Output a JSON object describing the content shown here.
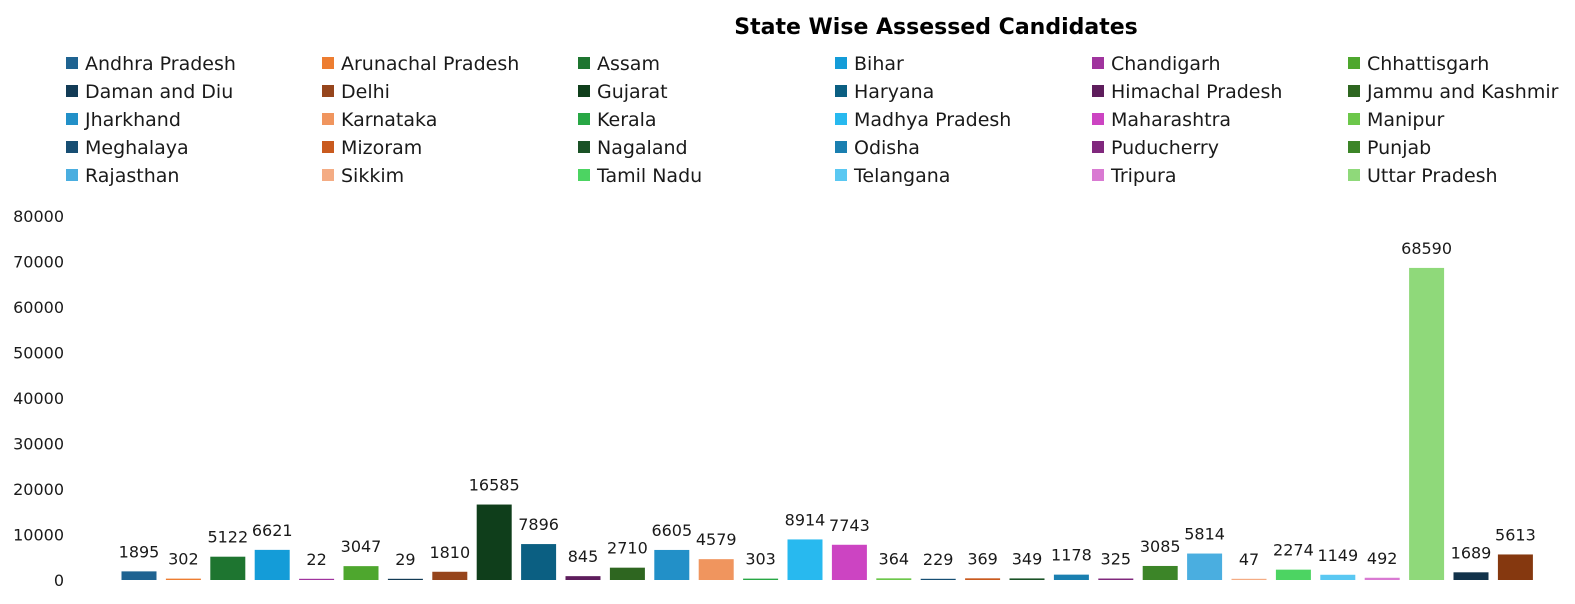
{
  "chart_data": {
    "type": "bar",
    "title": "State Wise Assessed Candidates",
    "xlabel": "",
    "ylabel": "",
    "ylim": [
      0,
      80000
    ],
    "yticks": [
      0,
      10000,
      20000,
      30000,
      40000,
      50000,
      60000,
      70000,
      80000
    ],
    "grid": false,
    "legend_position": "top",
    "legend": [
      {
        "name": "Andhra Pradesh",
        "color": "#1F6391"
      },
      {
        "name": "Arunachal Pradesh",
        "color": "#ED7D31"
      },
      {
        "name": "Assam",
        "color": "#1E7530"
      },
      {
        "name": "Bihar",
        "color": "#149CD8"
      },
      {
        "name": "Chandigarh",
        "color": "#A0349E"
      },
      {
        "name": "Chhattisgarh",
        "color": "#4EA72E"
      },
      {
        "name": "Daman and Diu",
        "color": "#123B56"
      },
      {
        "name": "Delhi",
        "color": "#96451C"
      },
      {
        "name": "Gujarat",
        "color": "#0F3E1B"
      },
      {
        "name": "Haryana",
        "color": "#0B5F82"
      },
      {
        "name": "Himachal Pradesh",
        "color": "#5E1D5C"
      },
      {
        "name": "Jammu and Kashmir",
        "color": "#2E6620"
      },
      {
        "name": "Jharkhand",
        "color": "#2290C8"
      },
      {
        "name": "Karnataka",
        "color": "#F0955E"
      },
      {
        "name": "Kerala",
        "color": "#28A745"
      },
      {
        "name": "Madhya Pradesh",
        "color": "#28B9EF"
      },
      {
        "name": "Maharashtra",
        "color": "#CC44C2"
      },
      {
        "name": "Manipur",
        "color": "#6CC74A"
      },
      {
        "name": "Meghalaya",
        "color": "#174E73"
      },
      {
        "name": "Mizoram",
        "color": "#C95A1E"
      },
      {
        "name": "Nagaland",
        "color": "#1A5226"
      },
      {
        "name": "Odisha",
        "color": "#1A7FB0"
      },
      {
        "name": "Puducherry",
        "color": "#80287D"
      },
      {
        "name": "Punjab",
        "color": "#3C8528"
      },
      {
        "name": "Rajasthan",
        "color": "#4AAEE0"
      },
      {
        "name": "Sikkim",
        "color": "#F4AC84"
      },
      {
        "name": "Tamil Nadu",
        "color": "#4CD462"
      },
      {
        "name": "Telangana",
        "color": "#5AC8F2"
      },
      {
        "name": "Tripura",
        "color": "#D97AD2"
      },
      {
        "name": "Uttar Pradesh",
        "color": "#8FD97A"
      }
    ],
    "categories": [
      "Andhra Pradesh",
      "Arunachal Pradesh",
      "Assam",
      "Bihar",
      "Chandigarh",
      "Chhattisgarh",
      "Daman and Diu",
      "Delhi",
      "Gujarat",
      "Haryana",
      "Himachal Pradesh",
      "Jammu and Kashmir",
      "Jharkhand",
      "Karnataka",
      "Kerala",
      "Madhya Pradesh",
      "Maharashtra",
      "Manipur",
      "Meghalaya",
      "Mizoram",
      "Nagaland",
      "Odisha",
      "Puducherry",
      "Punjab",
      "Rajasthan",
      "Sikkim",
      "Tamil Nadu",
      "Telangana",
      "Tripura",
      "Uttar Pradesh",
      "",
      ""
    ],
    "values": [
      1895,
      302,
      5122,
      6621,
      22,
      3047,
      29,
      1810,
      16585,
      7896,
      845,
      2710,
      6605,
      4579,
      303,
      8914,
      7743,
      364,
      229,
      369,
      349,
      1178,
      325,
      3085,
      5814,
      47,
      2274,
      1149,
      492,
      68590,
      1689,
      5613
    ],
    "colors": [
      "#1F6391",
      "#ED7D31",
      "#1E7530",
      "#149CD8",
      "#A0349E",
      "#4EA72E",
      "#123B56",
      "#96451C",
      "#0F3E1B",
      "#0B5F82",
      "#5E1D5C",
      "#2E6620",
      "#2290C8",
      "#F0955E",
      "#28A745",
      "#28B9EF",
      "#CC44C2",
      "#6CC74A",
      "#174E73",
      "#C95A1E",
      "#1A5226",
      "#1A7FB0",
      "#80287D",
      "#3C8528",
      "#4AAEE0",
      "#F4AC84",
      "#4CD462",
      "#5AC8F2",
      "#D97AD2",
      "#8FD97A",
      "#12324A",
      "#85380F"
    ]
  }
}
